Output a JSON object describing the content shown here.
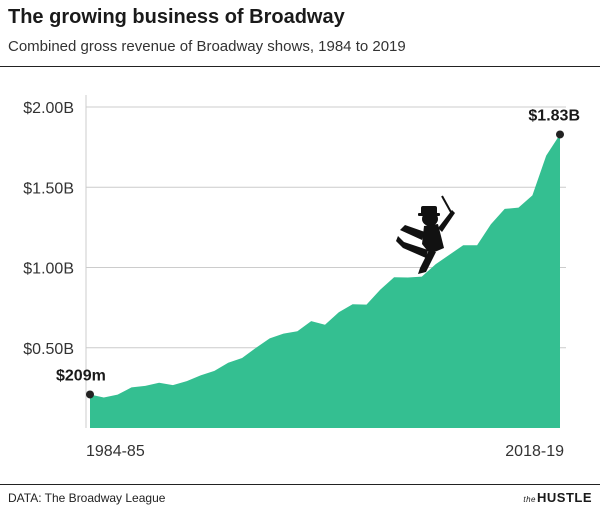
{
  "header": {
    "title": "The growing business of Broadway",
    "subtitle": "Combined gross revenue of Broadway shows, 1984 to 2019"
  },
  "footer": {
    "source": "DATA: The Broadway League",
    "brand_prefix": "the",
    "brand": "HUSTLE"
  },
  "colors": {
    "area": "#34bf91",
    "grid": "#cccccc",
    "marker": "#222222"
  },
  "chart_data": {
    "type": "area",
    "title": "The growing business of Broadway",
    "subtitle": "Combined gross revenue of Broadway shows, 1984 to 2019",
    "xlabel": "",
    "ylabel": "",
    "x_tick_labels": [
      "1984-85",
      "2018-19"
    ],
    "y_ticks": [
      {
        "value": 0.5,
        "label": "$0.50B"
      },
      {
        "value": 1.0,
        "label": "$1.00B"
      },
      {
        "value": 1.5,
        "label": "$1.50B"
      },
      {
        "value": 2.0,
        "label": "$2.00B"
      }
    ],
    "ylim": [
      0,
      2.0
    ],
    "grid": true,
    "x": [
      "1984-85",
      "1985-86",
      "1986-87",
      "1987-88",
      "1988-89",
      "1989-90",
      "1990-91",
      "1991-92",
      "1992-93",
      "1993-94",
      "1994-95",
      "1995-96",
      "1996-97",
      "1997-98",
      "1998-99",
      "1999-00",
      "2000-01",
      "2001-02",
      "2002-03",
      "2003-04",
      "2004-05",
      "2005-06",
      "2006-07",
      "2007-08",
      "2008-09",
      "2009-10",
      "2010-11",
      "2011-12",
      "2012-13",
      "2013-14",
      "2014-15",
      "2015-16",
      "2016-17",
      "2017-18",
      "2018-19"
    ],
    "values": [
      0.209,
      0.19,
      0.208,
      0.253,
      0.262,
      0.282,
      0.267,
      0.292,
      0.328,
      0.356,
      0.406,
      0.436,
      0.499,
      0.558,
      0.588,
      0.603,
      0.666,
      0.643,
      0.721,
      0.771,
      0.769,
      0.862,
      0.939,
      0.938,
      0.943,
      1.02,
      1.08,
      1.139,
      1.139,
      1.269,
      1.365,
      1.373,
      1.449,
      1.697,
      1.829
    ],
    "annotations": [
      {
        "label": "$209m",
        "x": "1984-85",
        "value": 0.209
      },
      {
        "label": "$1.83B",
        "x": "2018-19",
        "value": 1.829
      }
    ]
  }
}
